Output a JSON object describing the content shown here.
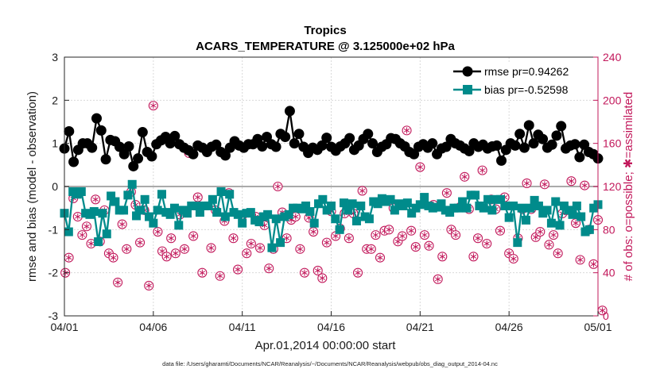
{
  "chart_data": {
    "type": "line",
    "title": "Tropics",
    "subtitle": "ACARS_TEMPERATURE @ 3.125000e+02 hPa",
    "xlabel": "Apr.01,2014 00:00:00 start",
    "ylabel_left": "rmse and bias (model - observation)",
    "ylabel_right": "# of obs: o=possible; ✱=assimilated",
    "x_range": [
      0,
      30
    ],
    "ylim_left": [
      -3,
      3
    ],
    "ylim_right": [
      0,
      240
    ],
    "x_ticks": [
      {
        "value": 0,
        "label": "04/01"
      },
      {
        "value": 5,
        "label": "04/06"
      },
      {
        "value": 10,
        "label": "04/11"
      },
      {
        "value": 15,
        "label": "04/16"
      },
      {
        "value": 20,
        "label": "04/21"
      },
      {
        "value": 25,
        "label": "04/26"
      },
      {
        "value": 30,
        "label": "05/01"
      }
    ],
    "y_ticks_left": [
      3,
      2,
      1,
      0,
      -1,
      -2,
      -3
    ],
    "y_ticks_right": [
      240,
      200,
      160,
      120,
      80,
      40,
      0
    ],
    "legend_position": "top-right",
    "series": [
      {
        "name": "rmse pr=0.94262",
        "axis": "left",
        "color": "#000000",
        "marker": "circle",
        "values": [
          0.88,
          1.28,
          0.57,
          0.85,
          1.0,
          1.0,
          0.9,
          1.58,
          1.3,
          0.63,
          1.08,
          1.05,
          0.92,
          0.75,
          0.93,
          0.47,
          0.65,
          1.26,
          0.8,
          0.7,
          0.98,
          1.07,
          1.15,
          1.0,
          1.17,
          0.98,
          0.9,
          0.84,
          0.75,
          0.95,
          0.9,
          0.8,
          0.92,
          0.97,
          0.8,
          0.72,
          0.9,
          1.05,
          0.95,
          0.9,
          0.98,
          0.98,
          1.1,
          0.93,
          1.15,
          0.98,
          0.92,
          1.22,
          1.15,
          1.75,
          1.0,
          1.22,
          0.92,
          0.78,
          0.9,
          0.85,
          0.95,
          1.13,
          0.92,
          0.83,
          0.93,
          1.0,
          1.12,
          0.85,
          0.95,
          1.1,
          1.22,
          1.0,
          0.8,
          0.92,
          0.98,
          1.12,
          1.1,
          1.0,
          0.93,
          0.8,
          0.75,
          0.92,
          0.98,
          0.9,
          1.0,
          0.75,
          0.88,
          0.92,
          1.1,
          1.0,
          0.95,
          0.88,
          0.82,
          1.0,
          0.92,
          0.97,
          0.88,
          0.93,
          0.95,
          0.6,
          0.85,
          1.0,
          0.95,
          1.22,
          0.9,
          1.42,
          1.0,
          1.2,
          1.1,
          0.9,
          0.97,
          1.18,
          1.4,
          0.88,
          0.95,
          0.98,
          0.68,
          0.97,
          0.8,
          0.75,
          0.65
        ]
      },
      {
        "name": "bias pr=-0.52598",
        "axis": "left",
        "color": "#008b8b",
        "marker": "square",
        "values": [
          -0.62,
          -1.05,
          -0.12,
          -0.18,
          -0.12,
          -0.62,
          -0.65,
          -0.58,
          -1.28,
          -0.62,
          -1.1,
          -0.22,
          -0.35,
          -0.55,
          -0.55,
          -0.2,
          0.05,
          -0.68,
          -0.55,
          -0.3,
          -0.7,
          -0.85,
          -0.55,
          -0.18,
          -0.6,
          -0.65,
          -0.5,
          -0.9,
          -0.55,
          -0.62,
          -0.45,
          -0.45,
          -0.6,
          -0.45,
          -0.45,
          -0.3,
          -0.6,
          -0.12,
          -0.7,
          -0.18,
          -0.6,
          -0.65,
          -0.85,
          -0.62,
          -0.6,
          -0.78,
          -0.82,
          -0.7,
          -0.65,
          -1.42,
          -0.75,
          -1.3,
          -0.7,
          -0.65,
          -0.5,
          -0.5,
          -0.52,
          -0.45,
          -0.58,
          -0.85,
          -0.4,
          -0.3,
          -0.55,
          -0.45,
          -0.75,
          -1.0,
          -0.38,
          -0.55,
          -0.4,
          -0.8,
          -0.45,
          -0.7,
          -0.75,
          -0.35,
          -0.4,
          -0.28,
          -0.35,
          -0.3,
          -0.55,
          -0.4,
          -0.45,
          -0.38,
          -0.62,
          -0.5,
          -0.42,
          -0.25,
          -0.45,
          -0.5,
          -0.48,
          -0.4,
          -0.55,
          -0.6,
          -0.5,
          -0.5,
          -0.35,
          -0.5,
          -0.2,
          -0.2,
          -0.45,
          -0.5,
          -0.3,
          -0.55,
          -0.3,
          -0.3,
          -0.45,
          -0.72,
          -0.45,
          -1.3,
          -0.5,
          -0.78,
          -0.5,
          -0.32,
          -0.45,
          -0.62,
          -0.55,
          -0.85,
          -0.35,
          -0.9,
          -0.45,
          -0.55,
          -0.65,
          -0.45,
          -0.7,
          -1.05,
          -1.0,
          -0.5,
          -0.42
        ]
      },
      {
        "name": "obs possible",
        "axis": "right",
        "color": "#c2185b",
        "marker": "open-circle",
        "points": [
          [
            0.05,
            40
          ],
          [
            0.25,
            54
          ],
          [
            0.5,
            109
          ],
          [
            0.75,
            92
          ],
          [
            1.0,
            75
          ],
          [
            1.25,
            83
          ],
          [
            1.5,
            67
          ],
          [
            1.75,
            108
          ],
          [
            2.0,
            69
          ],
          [
            2.25,
            98
          ],
          [
            2.5,
            58
          ],
          [
            2.75,
            54
          ],
          [
            3.0,
            31
          ],
          [
            3.25,
            85
          ],
          [
            3.5,
            62
          ],
          [
            3.75,
            115
          ],
          [
            4.0,
            103
          ],
          [
            4.25,
            68
          ],
          [
            4.5,
            98
          ],
          [
            4.75,
            28
          ],
          [
            5.0,
            195
          ],
          [
            5.25,
            78
          ],
          [
            5.5,
            60
          ],
          [
            5.75,
            55
          ],
          [
            6.0,
            72
          ],
          [
            6.25,
            58
          ],
          [
            6.5,
            94
          ],
          [
            6.75,
            62
          ],
          [
            7.0,
            151
          ],
          [
            7.25,
            74
          ],
          [
            7.5,
            110
          ],
          [
            7.75,
            40
          ],
          [
            8.0,
            153
          ],
          [
            8.25,
            63
          ],
          [
            8.5,
            98
          ],
          [
            8.75,
            37
          ],
          [
            9.0,
            88
          ],
          [
            9.25,
            114
          ],
          [
            9.5,
            72
          ],
          [
            9.75,
            43
          ],
          [
            10.0,
            93
          ],
          [
            10.25,
            58
          ],
          [
            10.5,
            67
          ],
          [
            10.75,
            92
          ],
          [
            11.0,
            63
          ],
          [
            11.25,
            84
          ],
          [
            11.5,
            44
          ],
          [
            11.75,
            62
          ],
          [
            12.0,
            120
          ],
          [
            12.25,
            96
          ],
          [
            12.5,
            72
          ],
          [
            12.75,
            89
          ],
          [
            13.0,
            92
          ],
          [
            13.25,
            62
          ],
          [
            13.5,
            40
          ],
          [
            13.75,
            91
          ],
          [
            14.0,
            78
          ],
          [
            14.25,
            42
          ],
          [
            14.5,
            35
          ],
          [
            14.75,
            68
          ],
          [
            15.0,
            97
          ],
          [
            15.25,
            74
          ],
          [
            15.5,
            81
          ],
          [
            15.75,
            95
          ],
          [
            16.0,
            72
          ],
          [
            16.25,
            95
          ],
          [
            16.5,
            40
          ],
          [
            16.75,
            116
          ],
          [
            17.0,
            62
          ],
          [
            17.25,
            62
          ],
          [
            17.5,
            75
          ],
          [
            17.75,
            54
          ],
          [
            18.0,
            79
          ],
          [
            18.25,
            80
          ],
          [
            18.5,
            100
          ],
          [
            18.75,
            69
          ],
          [
            19.0,
            74
          ],
          [
            19.25,
            172
          ],
          [
            19.5,
            79
          ],
          [
            19.75,
            64
          ],
          [
            20.0,
            138
          ],
          [
            20.25,
            75
          ],
          [
            20.5,
            65
          ],
          [
            20.75,
            103
          ],
          [
            21.0,
            34
          ],
          [
            21.25,
            55
          ],
          [
            21.5,
            114
          ],
          [
            21.75,
            80
          ],
          [
            22.0,
            75
          ],
          [
            22.25,
            101
          ],
          [
            22.5,
            129
          ],
          [
            22.75,
            99
          ],
          [
            23.0,
            55
          ],
          [
            23.25,
            72
          ],
          [
            23.5,
            135
          ],
          [
            23.75,
            67
          ],
          [
            24.0,
            108
          ],
          [
            24.25,
            99
          ],
          [
            24.5,
            79
          ],
          [
            24.75,
            110
          ],
          [
            25.0,
            58
          ],
          [
            25.25,
            53
          ],
          [
            25.5,
            72
          ],
          [
            25.75,
            99
          ],
          [
            26.0,
            123
          ],
          [
            26.25,
            99
          ],
          [
            26.5,
            73
          ],
          [
            26.75,
            78
          ],
          [
            27.0,
            122
          ],
          [
            27.25,
            66
          ],
          [
            27.5,
            75
          ],
          [
            27.75,
            58
          ],
          [
            28.0,
            95
          ],
          [
            28.25,
            98
          ],
          [
            28.5,
            125
          ],
          [
            28.75,
            86
          ],
          [
            29.0,
            52
          ],
          [
            29.25,
            121
          ],
          [
            29.5,
            80
          ],
          [
            29.75,
            48
          ],
          [
            30.0,
            89
          ],
          [
            30.25,
            5
          ]
        ]
      },
      {
        "name": "obs assimilated",
        "axis": "right",
        "color": "#c2185b",
        "marker": "asterisk"
      }
    ],
    "footnote": "data file: /Users/gharamti/Documents/NCAR/Reanalysis/~/Documents/NCAR/Reanalysis/webpub/obs_diag_output_2014-04.nc"
  }
}
